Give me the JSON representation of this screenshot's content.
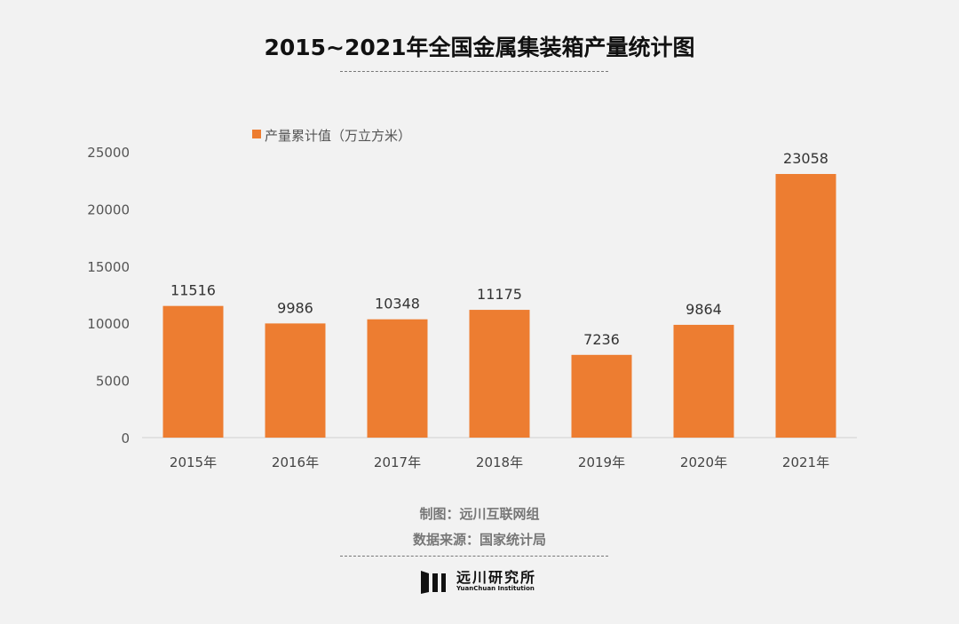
{
  "chart_data": {
    "type": "bar",
    "title": "2015~2021年全国金属集装箱产量统计图",
    "categories": [
      "2015年",
      "2016年",
      "2017年",
      "2018年",
      "2019年",
      "2020年",
      "2021年"
    ],
    "series": [
      {
        "name": "产量累计值（万立方米）",
        "values": [
          11516,
          9986,
          10348,
          11175,
          7236,
          9864,
          23058
        ],
        "color": "#ed7d31"
      }
    ],
    "yticks": [
      0,
      5000,
      10000,
      15000,
      20000,
      25000
    ],
    "ylim": [
      0,
      25000
    ],
    "xlabel": "",
    "ylabel": "",
    "grid": false,
    "legend": "top-left"
  },
  "footer": {
    "maker": "制图：远川互联网组",
    "source": "数据来源：国家统计局"
  },
  "logo": {
    "name": "远川研究所",
    "sub": "YuanChuan Institution"
  }
}
